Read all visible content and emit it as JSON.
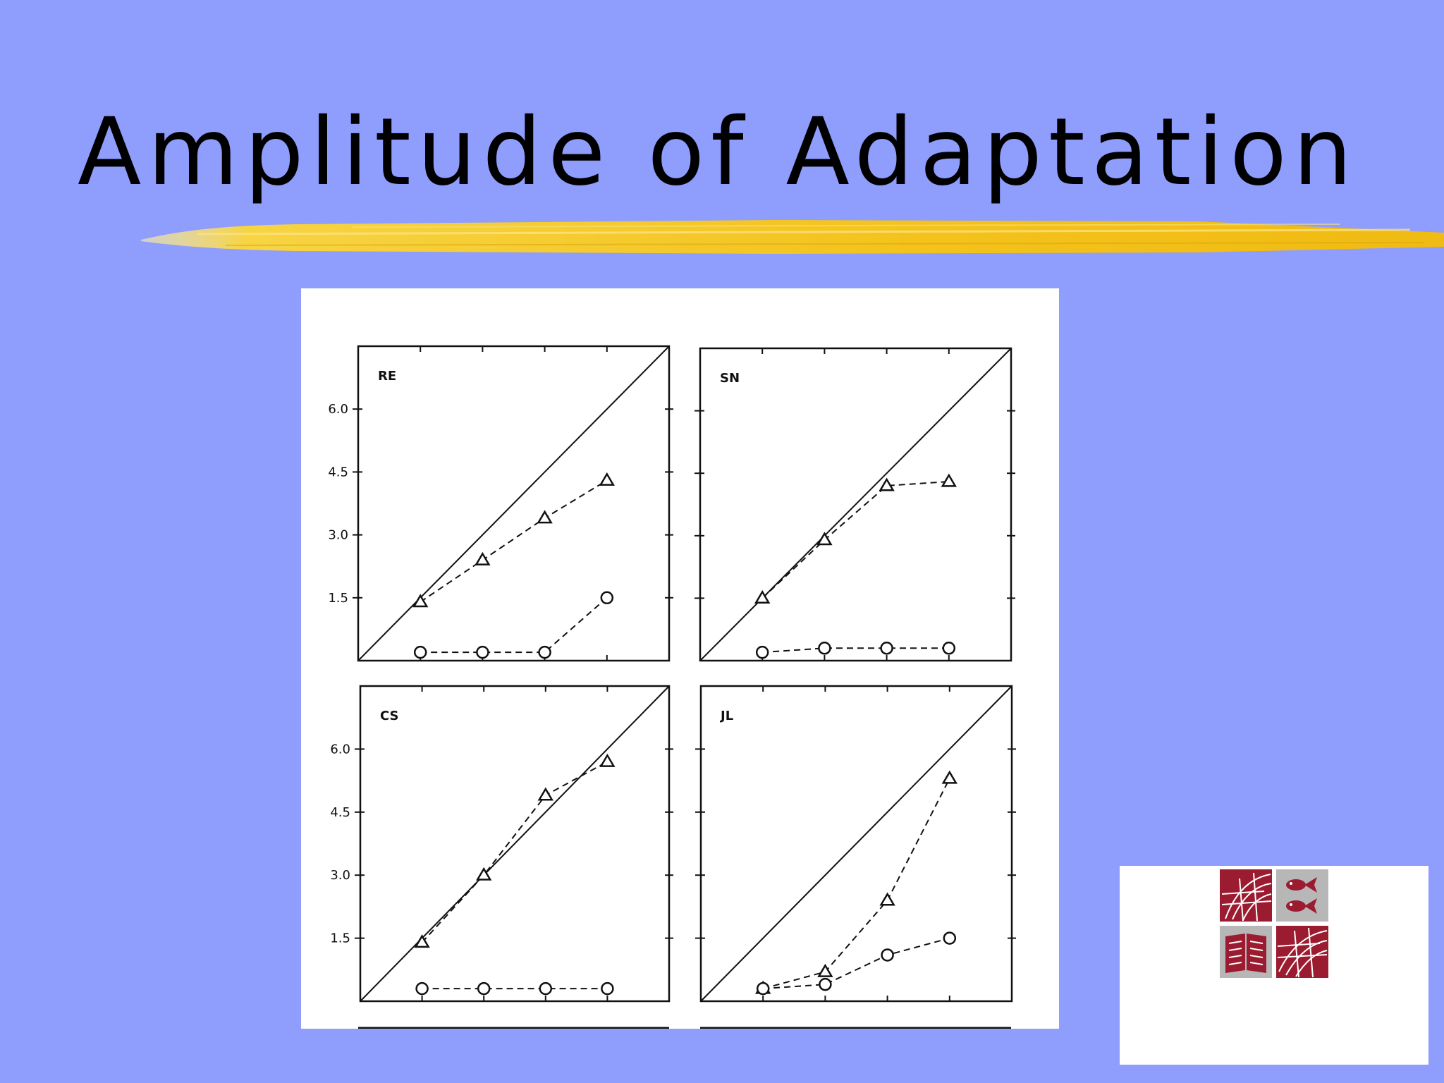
{
  "slide": {
    "title": "Amplitude of Adaptation",
    "accent_color": "#f5c518",
    "background_color": "#8f9dfc"
  },
  "logo": {
    "icons": [
      "globe-icon",
      "fish-icon",
      "book-icon",
      "globe-icon"
    ],
    "color": "#9b1b30"
  },
  "chart_data": [
    {
      "type": "line",
      "label": "RE",
      "x": [
        1,
        2,
        3,
        4
      ],
      "xlim": [
        0,
        5
      ],
      "ylim": [
        0,
        7.5
      ],
      "yticks": [
        "6.0",
        "4.5",
        "3.0",
        "1.5"
      ],
      "ytick_values": [
        6.0,
        4.5,
        3.0,
        1.5
      ],
      "diagonal": true,
      "series": [
        {
          "marker": "triangle",
          "values": [
            1.4,
            2.4,
            3.4,
            4.3
          ]
        },
        {
          "marker": "circle",
          "values": [
            0.2,
            0.2,
            0.2,
            1.5
          ]
        }
      ]
    },
    {
      "type": "line",
      "label": "SN",
      "x": [
        1,
        2,
        3,
        4
      ],
      "xlim": [
        0,
        5
      ],
      "ylim": [
        0,
        7.5
      ],
      "yticks": [],
      "ytick_values": [
        6.0,
        4.5,
        3.0,
        1.5
      ],
      "diagonal": true,
      "series": [
        {
          "marker": "triangle",
          "values": [
            1.5,
            2.9,
            4.2,
            4.3
          ]
        },
        {
          "marker": "circle",
          "values": [
            0.2,
            0.3,
            0.3,
            0.3
          ]
        }
      ]
    },
    {
      "type": "line",
      "label": "CS",
      "x": [
        1,
        2,
        3,
        4
      ],
      "xlim": [
        0,
        5
      ],
      "ylim": [
        0,
        7.5
      ],
      "yticks": [
        "6.0",
        "4.5",
        "3.0",
        "1.5"
      ],
      "ytick_values": [
        6.0,
        4.5,
        3.0,
        1.5
      ],
      "diagonal": true,
      "series": [
        {
          "marker": "triangle",
          "values": [
            1.4,
            3.0,
            4.9,
            5.7
          ]
        },
        {
          "marker": "circle",
          "values": [
            0.3,
            0.3,
            0.3,
            0.3
          ]
        }
      ]
    },
    {
      "type": "line",
      "label": "JL",
      "x": [
        1,
        2,
        3,
        4
      ],
      "xlim": [
        0,
        5
      ],
      "ylim": [
        0,
        7.5
      ],
      "yticks": [],
      "ytick_values": [
        6.0,
        4.5,
        3.0,
        1.5
      ],
      "diagonal": true,
      "series": [
        {
          "marker": "triangle",
          "values": [
            0.3,
            0.7,
            2.4,
            5.3
          ]
        },
        {
          "marker": "circle",
          "values": [
            0.3,
            0.4,
            1.1,
            1.5
          ]
        }
      ]
    }
  ]
}
